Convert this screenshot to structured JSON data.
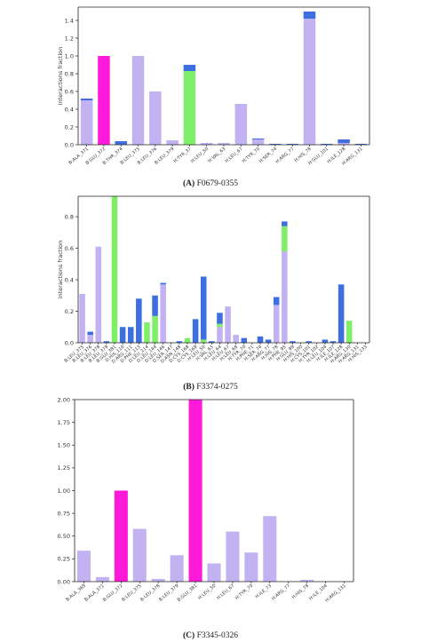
{
  "colors": {
    "lavender": "#c3b2f2",
    "blue": "#3d6fe0",
    "green": "#7fef6a",
    "magenta": "#ff1ad9"
  },
  "captions": [
    {
      "tag": "(A)",
      "text": "F0679-0355"
    },
    {
      "tag": "(B)",
      "text": "F3374-0275"
    },
    {
      "tag": "(C)",
      "text": "F3345-0326"
    }
  ],
  "chart_data": [
    {
      "type": "bar",
      "stacked": true,
      "ylabel": "interactions fraction",
      "ylim": [
        0,
        1.55
      ],
      "yticks": [
        "0.0",
        "0.2",
        "0.4",
        "0.6",
        "0.8",
        "1.0",
        "1.2",
        "1.4"
      ],
      "ytick_values": [
        0,
        0.2,
        0.4,
        0.6,
        0.8,
        1.0,
        1.2,
        1.4
      ],
      "categories": [
        "B:ALA_371",
        "B:GLU_372",
        "B:THR_374",
        "B:LEU_375",
        "B:LEU_376",
        "B:LEU_379",
        "H:TYR_37",
        "H:LEU_50",
        "H:VAL_63",
        "H:LEU_67",
        "H:TYR_70",
        "H:SER_74",
        "H:ARG_77",
        "H:HIS_78",
        "H:GLU_101",
        "H:ILE_128",
        "H:ARG_131"
      ],
      "labeled_every": 1,
      "series": [
        {
          "color": "lavender",
          "values": [
            0.5,
            0,
            0,
            1.0,
            0.6,
            0.05,
            0,
            0.02,
            0.02,
            0.46,
            0.06,
            0,
            0,
            1.42,
            0,
            0.02,
            0
          ]
        },
        {
          "color": "green",
          "values": [
            0,
            0,
            0,
            0,
            0,
            0,
            0.83,
            0,
            0,
            0,
            0,
            0,
            0,
            0,
            0,
            0,
            0
          ]
        },
        {
          "color": "magenta",
          "values": [
            0,
            1.0,
            0,
            0,
            0,
            0,
            0,
            0,
            0,
            0,
            0,
            0,
            0,
            0,
            0,
            0,
            0
          ]
        },
        {
          "color": "blue",
          "values": [
            0.02,
            0,
            0.04,
            0,
            0,
            0,
            0.07,
            0,
            0,
            0,
            0.01,
            0.01,
            0.01,
            0.08,
            0.01,
            0.04,
            0.01
          ]
        }
      ]
    },
    {
      "type": "bar",
      "stacked": true,
      "ylabel": "interactions fraction",
      "ylim": [
        0,
        0.93
      ],
      "yticks": [
        "0.0",
        "0.2",
        "0.4",
        "0.6",
        "0.8"
      ],
      "ytick_values": [
        0,
        0.2,
        0.4,
        0.6,
        0.8
      ],
      "categories": [
        "B:LEU_375",
        "B:LEU_376",
        "B:LEU_378",
        "B:LEU_379",
        "B:GLU_381",
        "D:HIS_110",
        "D:ARG_111",
        "D:PHE_113",
        "D:LEU_114",
        "D:LEU_144",
        "D:LEU_146",
        "D:SER_147",
        "D:ASN_148",
        "D:CYS_168",
        "D:CYS_169",
        "H:LEU_50",
        "H:VAL_63",
        "H:LEU_64",
        "H:LEU_67",
        "H:LEU_68",
        "H:TYR_70",
        "H:PHE_71",
        "H:SER_74",
        "H:ARG_77",
        "H:HIS_78",
        "H:PHE_95",
        "H:GLU_99",
        "H:HIS_100",
        "H:CYS_101",
        "H:TYR_102",
        "H:LEU_104",
        "H:ILE_107",
        "H:ILE_128",
        "H:ARG_130",
        "H:ARG_131",
        "H:HIS_133"
      ],
      "labeled_every": 1,
      "series": [
        {
          "color": "lavender",
          "values": [
            0.31,
            0.05,
            0.61,
            0,
            0,
            0,
            0,
            0,
            0,
            0,
            0.37,
            0,
            0,
            0,
            0,
            0,
            0,
            0.1,
            0.23,
            0.05,
            0,
            0,
            0,
            0,
            0.24,
            0.58,
            0,
            0,
            0,
            0,
            0,
            0,
            0,
            0,
            0,
            0
          ]
        },
        {
          "color": "green",
          "values": [
            0,
            0,
            0,
            0,
            0.93,
            0,
            0,
            0,
            0.13,
            0.17,
            0,
            0,
            0,
            0.03,
            0,
            0.02,
            0,
            0.02,
            0,
            0,
            0,
            0,
            0,
            0,
            0,
            0.16,
            0,
            0,
            0,
            0,
            0,
            0,
            0,
            0.14,
            0,
            0
          ]
        },
        {
          "color": "blue",
          "values": [
            0,
            0.02,
            0,
            0.01,
            0,
            0.1,
            0.1,
            0.28,
            0,
            0.13,
            0.01,
            0,
            0.01,
            0,
            0.15,
            0.4,
            0.01,
            0.07,
            0,
            0,
            0.03,
            0,
            0.04,
            0.02,
            0.05,
            0.03,
            0.01,
            0,
            0.01,
            0,
            0.02,
            0.01,
            0.37,
            0,
            0,
            0
          ]
        }
      ]
    },
    {
      "type": "bar",
      "stacked": false,
      "ylim": [
        0,
        2.0
      ],
      "yticks": [
        "0.00",
        "0.25",
        "0.50",
        "0.75",
        "1.00",
        "1.25",
        "1.50",
        "1.75",
        "2.00"
      ],
      "ytick_values": [
        0,
        0.25,
        0.5,
        0.75,
        1.0,
        1.25,
        1.5,
        1.75,
        2.0
      ],
      "categories": [
        "B:ALA_369",
        "B:ALA_371",
        "B:GLU_372",
        "B:LEU_375",
        "B:LEU_378",
        "B:LEU_379",
        "B:GLU_381",
        "H:LEU_50",
        "H:LEU_67",
        "H:TYR_70",
        "H:ILE_73",
        "H:ARG_77",
        "H:HIS_78",
        "H:ILE_104",
        "H:ARG_131"
      ],
      "labeled_every": 1,
      "series": [
        {
          "color": "lavender",
          "values": [
            0.34,
            0.05,
            0,
            0.58,
            0.03,
            0.29,
            0,
            0.2,
            0.55,
            0.32,
            0.72,
            0,
            0.02,
            0,
            0
          ]
        },
        {
          "color": "magenta",
          "values": [
            0,
            0,
            1.0,
            0,
            0,
            0,
            2.0,
            0,
            0,
            0,
            0,
            0,
            0,
            0,
            0
          ]
        }
      ]
    }
  ]
}
